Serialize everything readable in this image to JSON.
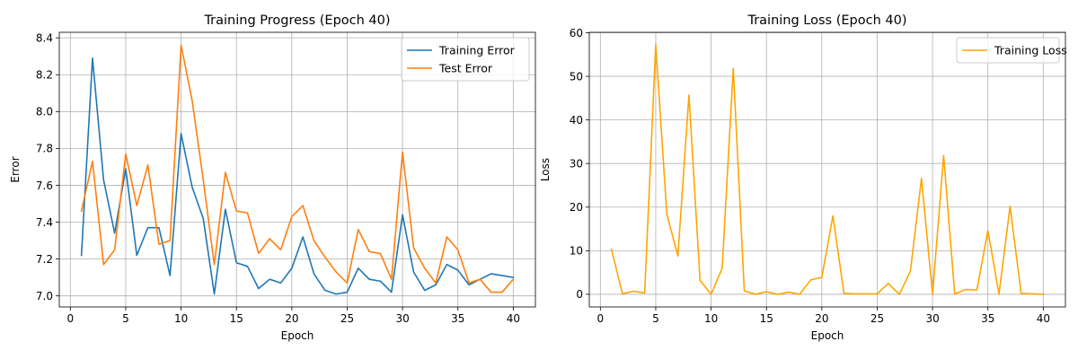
{
  "chart_data": [
    {
      "type": "line",
      "title": "Training Progress (Epoch 40)",
      "xlabel": "Epoch",
      "ylabel": "Error",
      "xlim": [
        -1,
        42
      ],
      "ylim": [
        6.94,
        8.43
      ],
      "xticks": [
        0,
        5,
        10,
        15,
        20,
        25,
        30,
        35,
        40
      ],
      "yticks": [
        7.0,
        7.2,
        7.4,
        7.6,
        7.8,
        8.0,
        8.2,
        8.4
      ],
      "ytick_labels": [
        "7.0",
        "7.2",
        "7.4",
        "7.6",
        "7.8",
        "8.0",
        "8.2",
        "8.4"
      ],
      "grid": true,
      "legend": "top-right",
      "x": [
        1,
        2,
        3,
        4,
        5,
        6,
        7,
        8,
        9,
        10,
        11,
        12,
        13,
        14,
        15,
        16,
        17,
        18,
        19,
        20,
        21,
        22,
        23,
        24,
        25,
        26,
        27,
        28,
        29,
        30,
        31,
        32,
        33,
        34,
        35,
        36,
        37,
        38,
        39,
        40
      ],
      "series": [
        {
          "name": "Training Error",
          "color": "#1f77b4",
          "values": [
            7.22,
            8.29,
            7.63,
            7.34,
            7.69,
            7.22,
            7.37,
            7.37,
            7.11,
            7.88,
            7.59,
            7.42,
            7.01,
            7.47,
            7.18,
            7.16,
            7.04,
            7.09,
            7.07,
            7.15,
            7.32,
            7.12,
            7.03,
            7.01,
            7.02,
            7.15,
            7.09,
            7.08,
            7.02,
            7.44,
            7.13,
            7.03,
            7.06,
            7.17,
            7.14,
            7.06,
            7.09,
            7.12,
            7.11,
            7.1
          ]
        },
        {
          "name": "Test Error",
          "color": "#ff7f0e",
          "values": [
            7.46,
            7.73,
            7.17,
            7.25,
            7.77,
            7.49,
            7.71,
            7.28,
            7.3,
            8.36,
            8.06,
            7.63,
            7.17,
            7.67,
            7.46,
            7.45,
            7.23,
            7.31,
            7.25,
            7.43,
            7.49,
            7.3,
            7.21,
            7.13,
            7.07,
            7.36,
            7.24,
            7.23,
            7.09,
            7.78,
            7.26,
            7.15,
            7.07,
            7.32,
            7.25,
            7.07,
            7.09,
            7.02,
            7.02,
            7.09
          ]
        }
      ]
    },
    {
      "type": "line",
      "title": "Training Loss (Epoch 40)",
      "xlabel": "Epoch",
      "ylabel": "Loss",
      "xlim": [
        -1,
        42
      ],
      "ylim": [
        -2.9,
        60.1
      ],
      "xticks": [
        0,
        5,
        10,
        15,
        20,
        25,
        30,
        35,
        40
      ],
      "yticks": [
        0,
        10,
        20,
        30,
        40,
        50,
        60
      ],
      "ytick_labels": [
        "0",
        "10",
        "20",
        "30",
        "40",
        "50",
        "60"
      ],
      "grid": true,
      "legend": "top-right",
      "x": [
        1,
        2,
        3,
        4,
        5,
        6,
        7,
        8,
        9,
        10,
        11,
        12,
        13,
        14,
        15,
        16,
        17,
        18,
        19,
        20,
        21,
        22,
        23,
        24,
        25,
        26,
        27,
        28,
        29,
        30,
        31,
        32,
        33,
        34,
        35,
        36,
        37,
        38,
        39,
        40
      ],
      "series": [
        {
          "name": "Training Loss",
          "color": "#ffa500",
          "values": [
            10.3,
            0.1,
            0.7,
            0.3,
            57.3,
            18.4,
            8.8,
            45.7,
            3.2,
            0.0,
            6.0,
            51.8,
            0.8,
            0.0,
            0.6,
            0.0,
            0.5,
            0.0,
            3.3,
            3.9,
            18.0,
            0.2,
            0.1,
            0.1,
            0.1,
            2.5,
            0.0,
            5.3,
            26.6,
            0.0,
            31.8,
            0.1,
            1.1,
            1.0,
            14.6,
            0.0,
            20.2,
            0.2,
            0.1,
            0.0
          ]
        }
      ]
    }
  ]
}
